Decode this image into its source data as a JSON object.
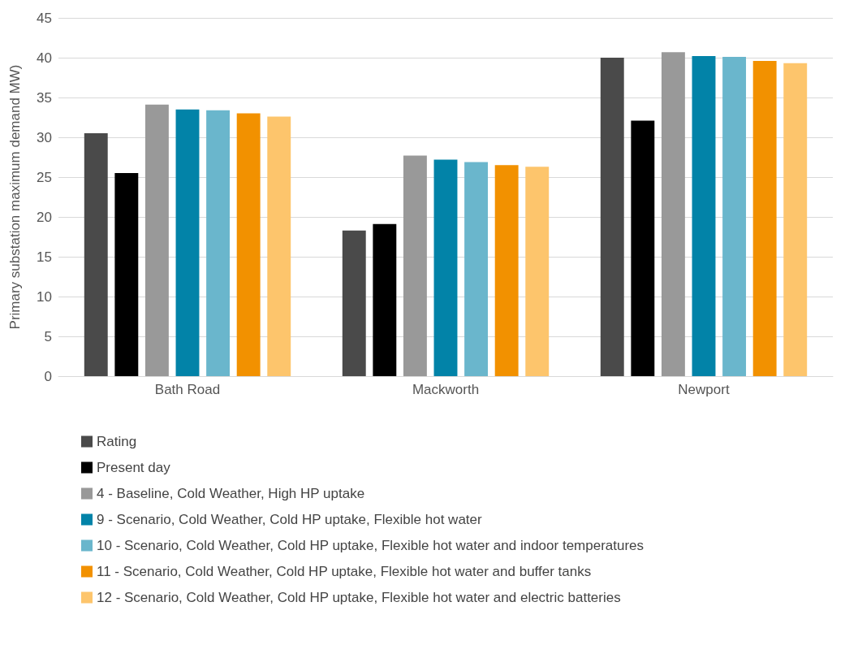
{
  "chart_data": {
    "type": "bar",
    "ylabel": "Primary substation maximum demand MW)",
    "categories": [
      "Bath Road",
      "Mackworth",
      "Newport"
    ],
    "series": [
      {
        "name": "Rating",
        "color": "#4a4a4a",
        "values": [
          30.5,
          18.3,
          40.0
        ]
      },
      {
        "name": "Present day",
        "color": "#000000",
        "values": [
          25.5,
          19.1,
          32.1
        ]
      },
      {
        "name": "4 - Baseline, Cold Weather, High HP uptake",
        "color": "#999999",
        "values": [
          34.1,
          27.7,
          40.7
        ]
      },
      {
        "name": "9 - Scenario, Cold Weather, Cold HP uptake, Flexible hot water",
        "color": "#0283a8",
        "values": [
          33.5,
          27.2,
          40.2
        ]
      },
      {
        "name": "10 - Scenario, Cold Weather, Cold HP uptake, Flexible hot water and indoor temperatures",
        "color": "#6ab6cc",
        "values": [
          33.4,
          26.9,
          40.1
        ]
      },
      {
        "name": "11 - Scenario, Cold Weather, Cold HP uptake, Flexible hot water and buffer tanks",
        "color": "#f29100",
        "values": [
          33.0,
          26.5,
          39.6
        ]
      },
      {
        "name": "12 - Scenario, Cold Weather, Cold HP uptake, Flexible hot water and electric batteries",
        "color": "#fdc56c",
        "values": [
          32.6,
          26.3,
          39.3
        ]
      }
    ],
    "ylim": [
      0,
      45
    ],
    "yticks": [
      0,
      5,
      10,
      15,
      20,
      25,
      30,
      35,
      40,
      45
    ],
    "grid": "y",
    "legend": "bottom"
  }
}
